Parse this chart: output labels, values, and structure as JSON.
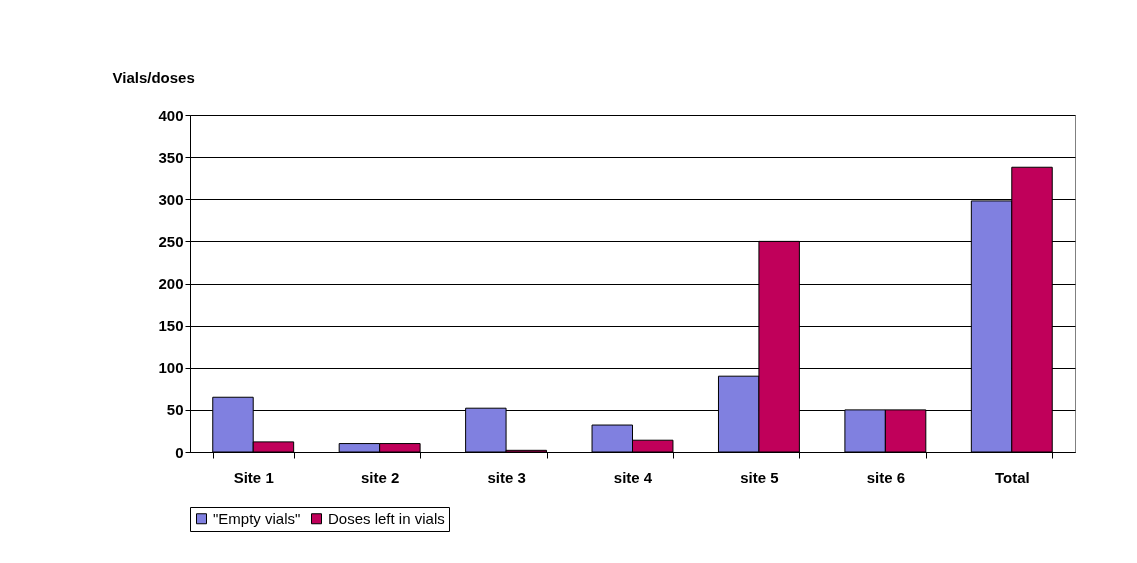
{
  "chart_data": {
    "type": "bar",
    "ylabel": "Vials/doses",
    "categories": [
      "Site 1",
      "site 2",
      "site 3",
      "site 4",
      "site 5",
      "site 6",
      "Total"
    ],
    "series": [
      {
        "name": "\"Empty vials\"",
        "color": "#8080e0",
        "values": [
          65,
          10,
          52,
          32,
          90,
          50,
          298
        ]
      },
      {
        "name": "Doses left in vials",
        "color": "#c0005a",
        "values": [
          12,
          10,
          2,
          14,
          250,
          50,
          338
        ]
      }
    ],
    "ylim": [
      0,
      400
    ],
    "yticks": [
      0,
      50,
      100,
      150,
      200,
      250,
      300,
      350,
      400
    ],
    "grid": "y",
    "legend": "bottom"
  }
}
